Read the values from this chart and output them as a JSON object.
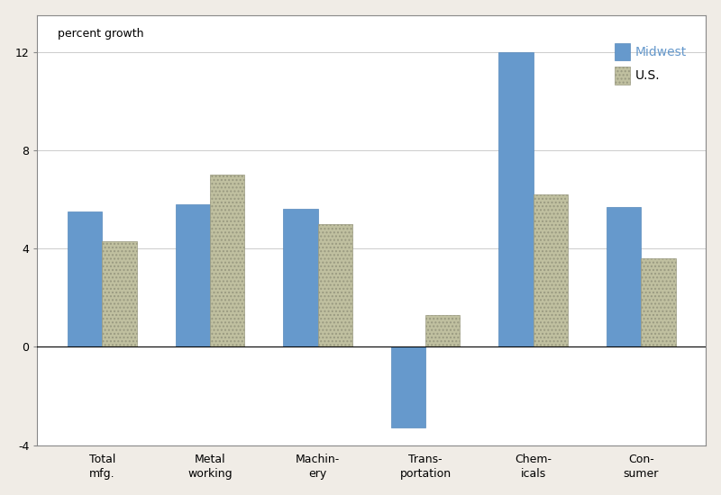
{
  "categories": [
    "Total\nmfg.",
    "Metal\nworking",
    "Machin-\nery",
    "Trans-\nportation",
    "Chem-\nicals",
    "Con-\nsumer"
  ],
  "midwest": [
    5.5,
    5.8,
    5.6,
    -3.3,
    12.0,
    5.7
  ],
  "us": [
    4.3,
    7.0,
    5.0,
    1.3,
    6.2,
    3.6
  ],
  "midwest_color": "#6699cc",
  "us_color": "#c0c0a0",
  "ylabel": "percent growth",
  "ylim": [
    -4,
    13.5
  ],
  "yticks": [
    -4,
    0,
    4,
    8,
    12
  ],
  "bar_width": 0.32,
  "plot_bg": "#ffffff",
  "outer_bg": "#f0ece6",
  "legend_midwest": "Midwest",
  "legend_us": "U.S.",
  "label_fontsize": 9,
  "legend_fontsize": 10
}
